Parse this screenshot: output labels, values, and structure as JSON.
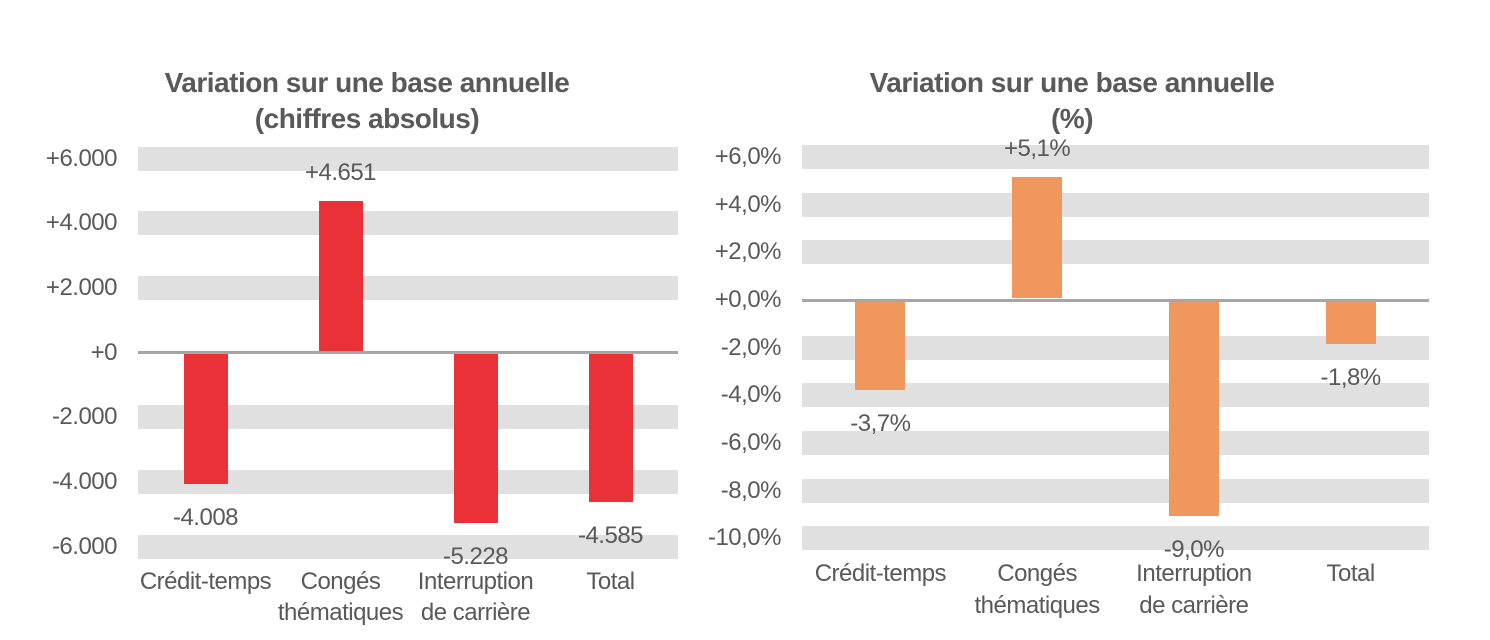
{
  "colors": {
    "background": "#ffffff",
    "text": "#595959",
    "gridline_band": "#e0e0e0",
    "zero_axis": "#a6a6a6",
    "red_bars": "#e93137",
    "orange_bars": "#f0975e"
  },
  "chart_data": [
    {
      "type": "bar",
      "title_lines": [
        "Variation sur une base annuelle",
        "(chiffres absolus)"
      ],
      "categories": [
        "Crédit-temps",
        "Congés thématiques",
        "Interruption de carrière",
        "Total"
      ],
      "category_label_lines": [
        [
          "Crédit-temps"
        ],
        [
          "Congés",
          "thématiques"
        ],
        [
          "Interruption",
          "de carrière"
        ],
        [
          "Total"
        ]
      ],
      "values": [
        -4008,
        4651,
        -5228,
        -4585
      ],
      "value_labels": [
        "-4.008",
        "+4.651",
        "-5.228",
        "-4.585"
      ],
      "bar_color": "#e93137",
      "ticks": [
        {
          "label": "+6.000",
          "value": 6000
        },
        {
          "label": "+4.000",
          "value": 4000
        },
        {
          "label": "+2.000",
          "value": 2000
        },
        {
          "label": "+0",
          "value": 0
        },
        {
          "label": "-2.000",
          "value": -2000
        },
        {
          "label": "-4.000",
          "value": -4000
        },
        {
          "label": "-6.000",
          "value": -6000
        }
      ],
      "ylim": [
        -6000,
        6000
      ],
      "grid": "horizontal-bands",
      "legend": "none"
    },
    {
      "type": "bar",
      "title_lines": [
        "Variation sur une base annuelle",
        "(%)"
      ],
      "categories": [
        "Crédit-temps",
        "Congés thématiques",
        "Interruption de carrière",
        "Total"
      ],
      "category_label_lines": [
        [
          "Crédit-temps"
        ],
        [
          "Congés",
          "thématiques"
        ],
        [
          "Interruption",
          "de carrière"
        ],
        [
          "Total"
        ]
      ],
      "values": [
        -3.7,
        5.1,
        -9.0,
        -1.8
      ],
      "value_labels": [
        "-3,7%",
        "+5,1%",
        "-9,0%",
        "-1,8%"
      ],
      "bar_color": "#f0975e",
      "ticks": [
        {
          "label": "+6,0%",
          "value": 6
        },
        {
          "label": "+4,0%",
          "value": 4
        },
        {
          "label": "+2,0%",
          "value": 2
        },
        {
          "label": "+0,0%",
          "value": 0
        },
        {
          "label": "-2,0%",
          "value": -2
        },
        {
          "label": "-4,0%",
          "value": -4
        },
        {
          "label": "-6,0%",
          "value": -6
        },
        {
          "label": "-8,0%",
          "value": -8
        },
        {
          "label": "-10,0%",
          "value": -10
        }
      ],
      "ylim": [
        -10,
        6
      ],
      "grid": "horizontal-bands",
      "legend": "none"
    }
  ]
}
